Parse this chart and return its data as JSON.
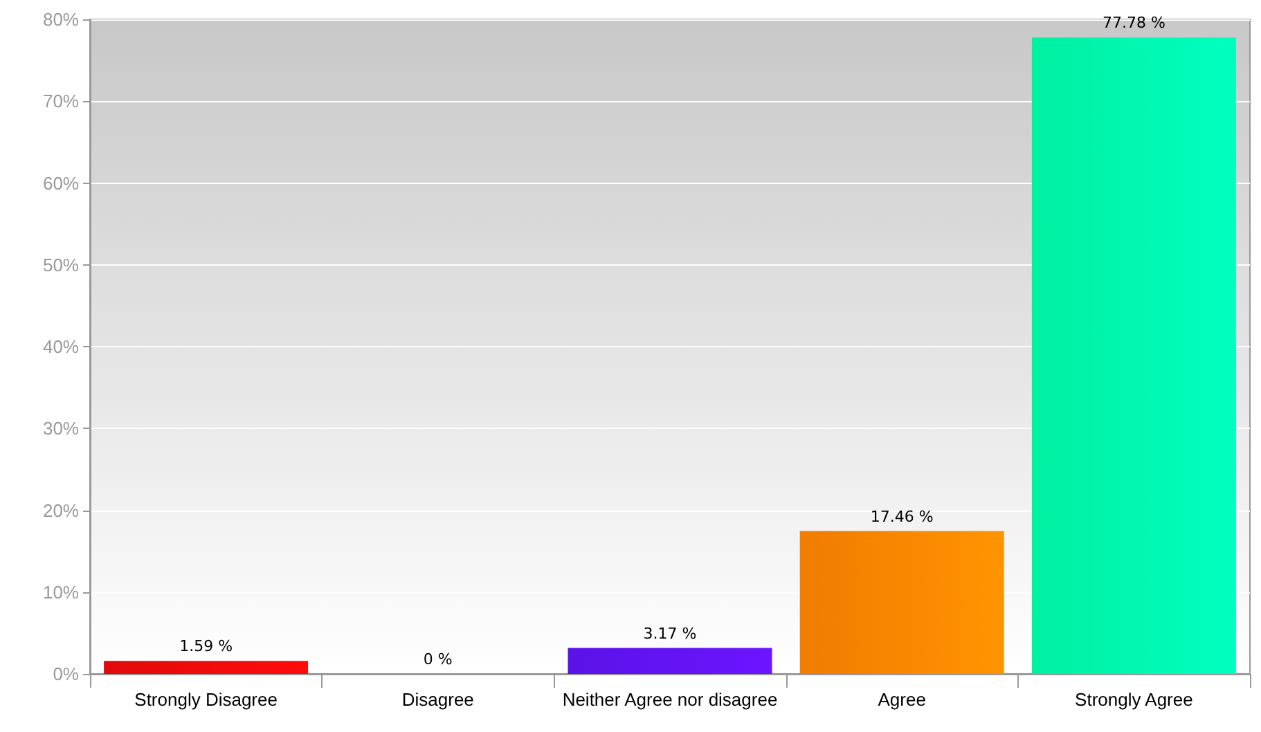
{
  "chart_data": {
    "type": "bar",
    "categories": [
      "Strongly Disagree",
      "Disagree",
      "Neither Agree nor disagree",
      "Agree",
      "Strongly Agree"
    ],
    "values": [
      1.59,
      0,
      3.17,
      17.46,
      77.78
    ],
    "value_labels": [
      "1.59 %",
      "0 %",
      "3.17 %",
      "17.46 %",
      "77.78 %"
    ],
    "colors": [
      "#e00a0a",
      null,
      "#5a12e6",
      "#f07c00",
      "#00f0a0"
    ],
    "ylim": [
      0,
      80
    ],
    "yticks": [
      {
        "value": 0,
        "label": "0%"
      },
      {
        "value": 10,
        "label": "10%"
      },
      {
        "value": 20,
        "label": "20%"
      },
      {
        "value": 30,
        "label": "30%"
      },
      {
        "value": 40,
        "label": "40%"
      },
      {
        "value": 50,
        "label": "50%"
      },
      {
        "value": 60,
        "label": "60%"
      },
      {
        "value": 70,
        "label": "70%"
      },
      {
        "value": 80,
        "label": "80%"
      }
    ],
    "grid": "y"
  }
}
